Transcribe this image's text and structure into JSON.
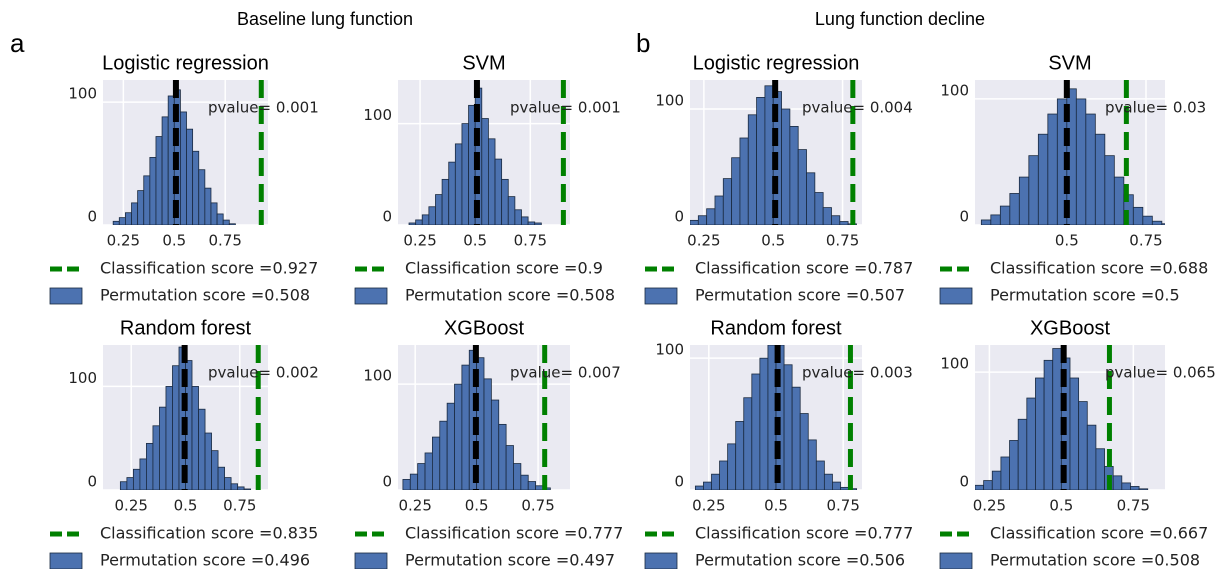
{
  "figure": {
    "groups": [
      {
        "label": "a",
        "title": "Baseline lung function"
      },
      {
        "label": "b",
        "title": "Lung function decline"
      }
    ]
  },
  "chart_data": [
    {
      "type": "histogram",
      "title": "Logistic regression",
      "annotation": "pvalue= 0.001",
      "color": "#4c72b0",
      "bins": [
        0.2,
        0.23,
        0.26,
        0.29,
        0.32,
        0.35,
        0.38,
        0.41,
        0.44,
        0.47,
        0.5,
        0.53,
        0.56,
        0.59,
        0.62,
        0.65,
        0.68,
        0.71,
        0.74,
        0.77,
        0.8
      ],
      "counts": [
        3,
        6,
        10,
        18,
        28,
        40,
        55,
        72,
        88,
        105,
        110,
        92,
        78,
        60,
        45,
        30,
        18,
        9,
        4,
        1
      ],
      "classification": {
        "name": "Classification score =0.927",
        "value": 0.927,
        "color": "#008000"
      },
      "permutation": {
        "name": "Permutation score =0.508",
        "value": 0.508,
        "color": "#000000"
      },
      "xlim": [
        0.15,
        0.96
      ],
      "ylim": [
        0,
        118
      ],
      "xticks": [
        0.25,
        0.5,
        0.75
      ],
      "yticks": [
        0,
        100
      ],
      "grid": true
    },
    {
      "type": "histogram",
      "title": "SVM",
      "annotation": "pvalue= 0.001",
      "color": "#4c72b0",
      "bins": [
        0.2,
        0.23,
        0.26,
        0.29,
        0.32,
        0.35,
        0.38,
        0.41,
        0.44,
        0.47,
        0.5,
        0.53,
        0.56,
        0.59,
        0.62,
        0.65,
        0.68,
        0.71,
        0.74,
        0.77,
        0.8
      ],
      "counts": [
        2,
        5,
        10,
        18,
        30,
        45,
        62,
        80,
        100,
        118,
        135,
        105,
        85,
        65,
        45,
        28,
        15,
        8,
        3,
        2
      ],
      "classification": {
        "name": "Classification score =0.9",
        "value": 0.9,
        "color": "#008000"
      },
      "permutation": {
        "name": "Permutation score =0.508",
        "value": 0.508,
        "color": "#000000"
      },
      "xlim": [
        0.15,
        0.93
      ],
      "ylim": [
        0,
        143
      ],
      "xticks": [
        0.25,
        0.5,
        0.75
      ],
      "yticks": [
        0,
        100
      ],
      "grid": true
    },
    {
      "type": "histogram",
      "title": "Logistic regression",
      "annotation": "pvalue= 0.004",
      "color": "#4c72b0",
      "bins": [
        0.2,
        0.23,
        0.26,
        0.29,
        0.32,
        0.35,
        0.38,
        0.41,
        0.44,
        0.47,
        0.5,
        0.53,
        0.56,
        0.59,
        0.62,
        0.65,
        0.68,
        0.71,
        0.74,
        0.77,
        0.8
      ],
      "counts": [
        4,
        8,
        14,
        25,
        40,
        58,
        75,
        95,
        110,
        120,
        115,
        100,
        85,
        65,
        45,
        28,
        15,
        8,
        3,
        1
      ],
      "classification": {
        "name": "Classification score =0.787",
        "value": 0.787,
        "color": "#008000"
      },
      "permutation": {
        "name": "Permutation score =0.507",
        "value": 0.507,
        "color": "#000000"
      },
      "xlim": [
        0.2,
        0.82
      ],
      "ylim": [
        0,
        125
      ],
      "xticks": [
        0.25,
        0.5,
        0.75
      ],
      "yticks": [
        0,
        100
      ],
      "grid": true
    },
    {
      "type": "histogram",
      "title": "SVM",
      "annotation": "pvalue= 0.03",
      "color": "#4c72b0",
      "bins": [
        0.23,
        0.26,
        0.29,
        0.32,
        0.35,
        0.38,
        0.41,
        0.44,
        0.47,
        0.5,
        0.53,
        0.56,
        0.59,
        0.62,
        0.65,
        0.68,
        0.71,
        0.74,
        0.77,
        0.8,
        0.83
      ],
      "counts": [
        4,
        8,
        15,
        25,
        38,
        55,
        72,
        88,
        100,
        108,
        100,
        88,
        72,
        55,
        38,
        24,
        14,
        7,
        3,
        1
      ],
      "classification": {
        "name": "Classification score =0.688",
        "value": 0.688,
        "color": "#008000"
      },
      "permutation": {
        "name": "Permutation score =0.5",
        "value": 0.5,
        "color": "#000000"
      },
      "xlim": [
        0.21,
        0.81
      ],
      "ylim": [
        0,
        115
      ],
      "xticks": [
        0.5,
        0.75
      ],
      "yticks": [
        0,
        100
      ],
      "grid": true
    },
    {
      "type": "histogram",
      "title": "Random forest",
      "annotation": "pvalue= 0.002",
      "color": "#4c72b0",
      "bins": [
        0.2,
        0.23,
        0.26,
        0.29,
        0.32,
        0.35,
        0.38,
        0.41,
        0.44,
        0.47,
        0.5,
        0.53,
        0.56,
        0.59,
        0.62,
        0.65,
        0.68,
        0.71,
        0.74,
        0.77,
        0.8
      ],
      "counts": [
        8,
        12,
        20,
        30,
        45,
        62,
        80,
        100,
        120,
        138,
        125,
        100,
        78,
        55,
        38,
        22,
        12,
        6,
        3,
        1
      ],
      "classification": {
        "name": "Classification score =0.835",
        "value": 0.835,
        "color": "#008000"
      },
      "permutation": {
        "name": "Permutation score =0.496",
        "value": 0.496,
        "color": "#000000"
      },
      "xlim": [
        0.12,
        0.88
      ],
      "ylim": [
        0,
        140
      ],
      "xticks": [
        0.25,
        0.5,
        0.75
      ],
      "yticks": [
        0,
        100
      ],
      "grid": true
    },
    {
      "type": "histogram",
      "title": "XGBoost",
      "annotation": "pvalue= 0.007",
      "color": "#4c72b0",
      "bins": [
        0.2,
        0.23,
        0.26,
        0.29,
        0.32,
        0.35,
        0.38,
        0.41,
        0.44,
        0.47,
        0.5,
        0.53,
        0.56,
        0.59,
        0.62,
        0.65,
        0.68,
        0.71,
        0.74,
        0.77,
        0.8
      ],
      "counts": [
        10,
        15,
        25,
        35,
        50,
        65,
        82,
        100,
        118,
        132,
        125,
        105,
        85,
        62,
        42,
        25,
        14,
        8,
        4,
        2
      ],
      "classification": {
        "name": "Classification score =0.777",
        "value": 0.777,
        "color": "#008000"
      },
      "permutation": {
        "name": "Permutation score =0.497",
        "value": 0.497,
        "color": "#000000"
      },
      "xlim": [
        0.18,
        0.88
      ],
      "ylim": [
        0,
        137
      ],
      "xticks": [
        0.25,
        0.5,
        0.75
      ],
      "yticks": [
        0,
        100
      ],
      "grid": true
    },
    {
      "type": "histogram",
      "title": "Random forest",
      "annotation": "pvalue= 0.003",
      "color": "#4c72b0",
      "bins": [
        0.2,
        0.23,
        0.26,
        0.29,
        0.32,
        0.35,
        0.38,
        0.41,
        0.44,
        0.47,
        0.5,
        0.53,
        0.56,
        0.59,
        0.62,
        0.65,
        0.68,
        0.71,
        0.74,
        0.77,
        0.8
      ],
      "counts": [
        3,
        6,
        12,
        22,
        35,
        52,
        70,
        88,
        100,
        110,
        110,
        95,
        78,
        58,
        38,
        22,
        12,
        6,
        2,
        1
      ],
      "classification": {
        "name": "Classification score =0.777",
        "value": 0.777,
        "color": "#008000"
      },
      "permutation": {
        "name": "Permutation score =0.506",
        "value": 0.506,
        "color": "#000000"
      },
      "xlim": [
        0.18,
        0.82
      ],
      "ylim": [
        0,
        110
      ],
      "xticks": [
        0.25,
        0.5,
        0.75
      ],
      "yticks": [
        0,
        100
      ],
      "grid": true
    },
    {
      "type": "histogram",
      "title": "XGBoost",
      "annotation": "pvalue= 0.065",
      "color": "#4c72b0",
      "bins": [
        0.2,
        0.23,
        0.26,
        0.29,
        0.32,
        0.35,
        0.38,
        0.41,
        0.44,
        0.47,
        0.5,
        0.53,
        0.56,
        0.59,
        0.62,
        0.65,
        0.68,
        0.71,
        0.74,
        0.77,
        0.8
      ],
      "counts": [
        4,
        8,
        16,
        28,
        42,
        60,
        78,
        95,
        110,
        120,
        112,
        95,
        75,
        55,
        35,
        20,
        12,
        6,
        3,
        1
      ],
      "classification": {
        "name": "Classification score =0.667",
        "value": 0.667,
        "color": "#008000"
      },
      "permutation": {
        "name": "Permutation score =0.508",
        "value": 0.508,
        "color": "#000000"
      },
      "xlim": [
        0.2,
        0.86
      ],
      "ylim": [
        0,
        123
      ],
      "xticks": [
        0.25,
        0.5,
        0.75
      ],
      "yticks": [
        0,
        100
      ],
      "grid": true
    }
  ]
}
